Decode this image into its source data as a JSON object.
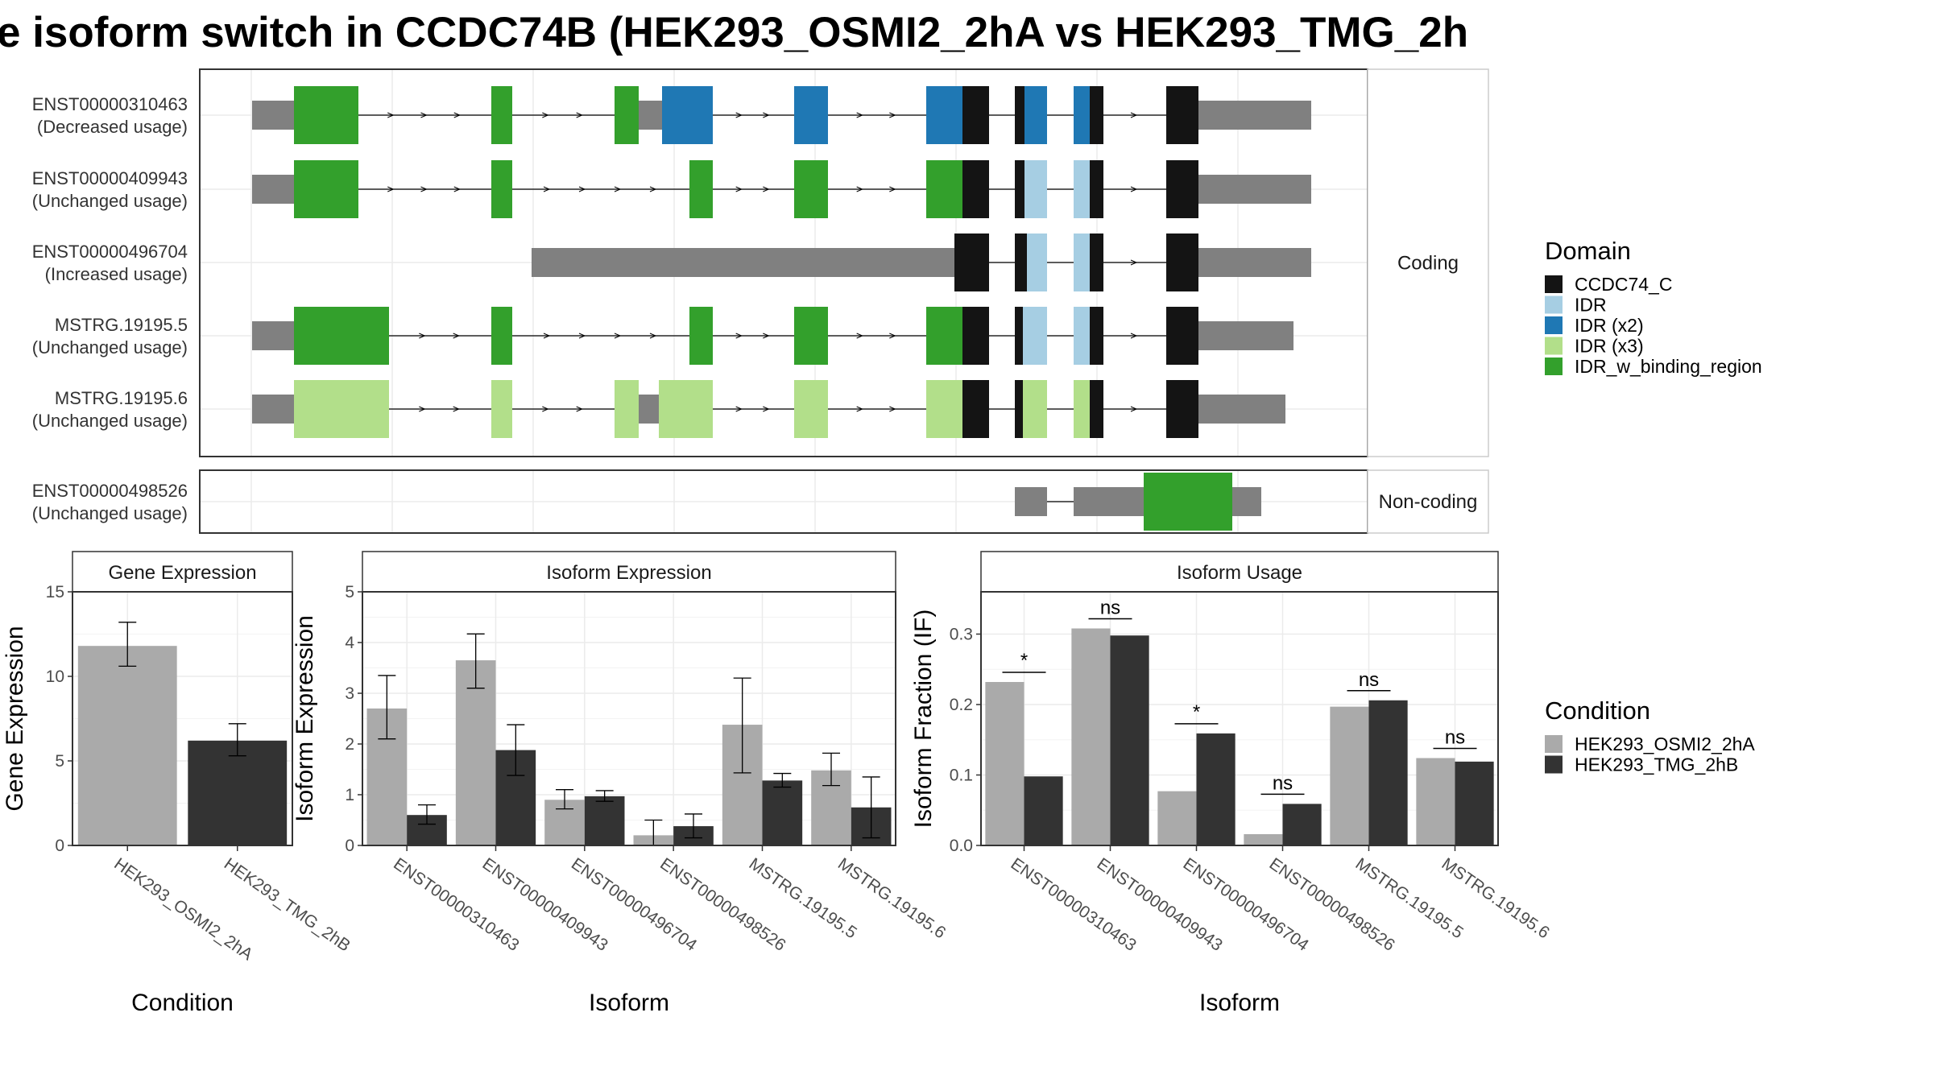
{
  "title": "e isoform switch in CCDC74B (HEK293_OSMI2_2hA vs HEK293_TMG_2h",
  "colors": {
    "CCDC74_C": "#141414",
    "IDR": "#a6cee3",
    "IDR (x2)": "#1f78b4",
    "IDR (x3)": "#b2df8a",
    "IDR_w_binding_region": "#33a02c",
    "utr": "#808080",
    "cond1": "#aaaaaa",
    "cond2": "#333333"
  },
  "transcripts": {
    "strips": [
      "Coding",
      "Non-coding"
    ],
    "coding": [
      {
        "id": "ENST00000310463",
        "usage": "(Decreased usage)",
        "exons": [
          [
            313,
            365,
            "utr"
          ],
          [
            365,
            445,
            "IDR_w_binding_region"
          ],
          [
            610,
            636,
            "IDR_w_binding_region"
          ],
          [
            763,
            793,
            "IDR_w_binding_region"
          ],
          [
            793,
            822,
            "utr"
          ],
          [
            822,
            885,
            "IDR (x2)"
          ],
          [
            986,
            1028,
            "IDR (x2)"
          ],
          [
            1150,
            1195,
            "IDR (x2)"
          ],
          [
            1195,
            1228,
            "CCDC74_C"
          ],
          [
            1260,
            1272,
            "CCDC74_C"
          ],
          [
            1272,
            1300,
            "IDR (x2)"
          ],
          [
            1333,
            1353,
            "IDR (x2)"
          ],
          [
            1353,
            1370,
            "CCDC74_C"
          ],
          [
            1448,
            1488,
            "CCDC74_C"
          ],
          [
            1488,
            1628,
            "utr"
          ]
        ]
      },
      {
        "id": "ENST00000409943",
        "usage": "(Unchanged usage)",
        "exons": [
          [
            313,
            365,
            "utr"
          ],
          [
            365,
            445,
            "IDR_w_binding_region"
          ],
          [
            610,
            636,
            "IDR_w_binding_region"
          ],
          [
            856,
            885,
            "IDR_w_binding_region"
          ],
          [
            986,
            1028,
            "IDR_w_binding_region"
          ],
          [
            1150,
            1195,
            "IDR_w_binding_region"
          ],
          [
            1195,
            1228,
            "CCDC74_C"
          ],
          [
            1260,
            1272,
            "CCDC74_C"
          ],
          [
            1272,
            1300,
            "IDR"
          ],
          [
            1333,
            1353,
            "IDR"
          ],
          [
            1353,
            1370,
            "CCDC74_C"
          ],
          [
            1448,
            1488,
            "CCDC74_C"
          ],
          [
            1488,
            1628,
            "utr"
          ]
        ]
      },
      {
        "id": "ENST00000496704",
        "usage": "(Increased usage)",
        "exons": [
          [
            660,
            1185,
            "utr"
          ],
          [
            1185,
            1228,
            "CCDC74_C"
          ],
          [
            1260,
            1275,
            "CCDC74_C"
          ],
          [
            1275,
            1300,
            "IDR"
          ],
          [
            1333,
            1353,
            "IDR"
          ],
          [
            1353,
            1370,
            "CCDC74_C"
          ],
          [
            1448,
            1488,
            "CCDC74_C"
          ],
          [
            1488,
            1628,
            "utr"
          ]
        ]
      },
      {
        "id": "MSTRG.19195.5",
        "usage": "(Unchanged usage)",
        "exons": [
          [
            313,
            365,
            "utr"
          ],
          [
            365,
            483,
            "IDR_w_binding_region"
          ],
          [
            610,
            636,
            "IDR_w_binding_region"
          ],
          [
            856,
            885,
            "IDR_w_binding_region"
          ],
          [
            986,
            1028,
            "IDR_w_binding_region"
          ],
          [
            1150,
            1195,
            "IDR_w_binding_region"
          ],
          [
            1195,
            1228,
            "CCDC74_C"
          ],
          [
            1260,
            1270,
            "CCDC74_C"
          ],
          [
            1270,
            1300,
            "IDR"
          ],
          [
            1333,
            1353,
            "IDR"
          ],
          [
            1353,
            1370,
            "CCDC74_C"
          ],
          [
            1448,
            1488,
            "CCDC74_C"
          ],
          [
            1488,
            1606,
            "utr"
          ]
        ]
      },
      {
        "id": "MSTRG.19195.6",
        "usage": "(Unchanged usage)",
        "exons": [
          [
            313,
            365,
            "utr"
          ],
          [
            365,
            483,
            "IDR (x3)"
          ],
          [
            610,
            636,
            "IDR (x3)"
          ],
          [
            763,
            793,
            "IDR (x3)"
          ],
          [
            793,
            818,
            "utr"
          ],
          [
            818,
            885,
            "IDR (x3)"
          ],
          [
            986,
            1028,
            "IDR (x3)"
          ],
          [
            1150,
            1195,
            "IDR (x3)"
          ],
          [
            1195,
            1228,
            "CCDC74_C"
          ],
          [
            1260,
            1270,
            "CCDC74_C"
          ],
          [
            1270,
            1300,
            "IDR (x3)"
          ],
          [
            1333,
            1353,
            "IDR (x3)"
          ],
          [
            1353,
            1370,
            "CCDC74_C"
          ],
          [
            1448,
            1488,
            "CCDC74_C"
          ],
          [
            1488,
            1596,
            "utr"
          ]
        ]
      }
    ],
    "noncoding": [
      {
        "id": "ENST00000498526",
        "usage": "(Unchanged usage)",
        "exons": [
          [
            1260,
            1300,
            "utr"
          ],
          [
            1333,
            1420,
            "utr"
          ],
          [
            1420,
            1530,
            "IDR_w_binding_region"
          ],
          [
            1530,
            1566,
            "utr"
          ]
        ]
      }
    ]
  },
  "legend_domain": {
    "title": "Domain",
    "items": [
      "CCDC74_C",
      "IDR",
      "IDR (x2)",
      "IDR (x3)",
      "IDR_w_binding_region"
    ]
  },
  "legend_condition": {
    "title": "Condition",
    "items": [
      "HEK293_OSMI2_2hA",
      "HEK293_TMG_2hB"
    ]
  },
  "chart_data": [
    {
      "type": "bar",
      "title": "Gene Expression",
      "xlabel": "Condition",
      "ylabel": "Gene Expression",
      "ylim": [
        0,
        15
      ],
      "yticks": [
        0,
        5,
        10,
        15
      ],
      "categories": [
        "HEK293_OSMI2_2hA",
        "HEK293_TMG_2hB"
      ],
      "values": [
        11.8,
        6.2
      ],
      "err_low": [
        10.6,
        5.3
      ],
      "err_high": [
        13.2,
        7.2
      ]
    },
    {
      "type": "bar",
      "title": "Isoform Expression",
      "xlabel": "Isoform",
      "ylabel": "Isoform Expression",
      "ylim": [
        0,
        5
      ],
      "yticks": [
        0,
        1,
        2,
        3,
        4,
        5
      ],
      "categories": [
        "ENST00000310463",
        "ENST00000409943",
        "ENST00000496704",
        "ENST00000498526",
        "MSTRG.19195.5",
        "MSTRG.19195.6"
      ],
      "series": [
        {
          "name": "HEK293_OSMI2_2hA",
          "values": [
            2.7,
            3.65,
            0.9,
            0.2,
            2.38,
            1.48
          ],
          "err_low": [
            2.1,
            3.1,
            0.72,
            0.0,
            1.43,
            1.18
          ],
          "err_high": [
            3.35,
            4.17,
            1.1,
            0.5,
            3.3,
            1.82
          ]
        },
        {
          "name": "HEK293_TMG_2hB",
          "values": [
            0.6,
            1.88,
            0.97,
            0.38,
            1.28,
            0.75
          ],
          "err_low": [
            0.42,
            1.38,
            0.87,
            0.15,
            1.15,
            0.15
          ],
          "err_high": [
            0.8,
            2.38,
            1.08,
            0.62,
            1.42,
            1.35
          ]
        }
      ]
    },
    {
      "type": "bar",
      "title": "Isoform Usage",
      "xlabel": "Isoform",
      "ylabel": "Isoform Fraction (IF)",
      "ylim": [
        0,
        0.36
      ],
      "yticks": [
        0.0,
        0.1,
        0.2,
        0.3
      ],
      "categories": [
        "ENST00000310463",
        "ENST00000409943",
        "ENST00000496704",
        "ENST00000498526",
        "MSTRG.19195.5",
        "MSTRG.19195.6"
      ],
      "series": [
        {
          "name": "HEK293_OSMI2_2hA",
          "values": [
            0.232,
            0.308,
            0.077,
            0.016,
            0.197,
            0.124
          ]
        },
        {
          "name": "HEK293_TMG_2hB",
          "values": [
            0.098,
            0.298,
            0.159,
            0.059,
            0.206,
            0.119
          ]
        }
      ],
      "significance": [
        "*",
        "ns",
        "*",
        "ns",
        "ns",
        "ns"
      ]
    }
  ]
}
